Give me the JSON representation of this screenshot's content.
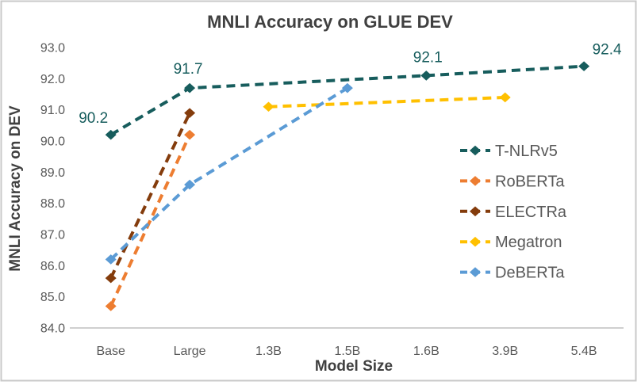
{
  "colors": {
    "title_text": "#404040",
    "axis_title_text": "#404040",
    "tick_text": "#595959",
    "legend_text": "#595959",
    "axis_line": "#BFBFBF",
    "frame_border": "#C9C9C9",
    "background": "#FFFFFF",
    "data_label_text": "#175D5D"
  },
  "chart_data": {
    "type": "line",
    "title": "MNLI Accuracy on GLUE DEV",
    "xlabel": "Model Size",
    "ylabel": "MNLI Accuracy on DEV",
    "categories": [
      "Base",
      "Large",
      "1.3B",
      "1.5B",
      "1.6B",
      "3.9B",
      "5.4B"
    ],
    "ylim": [
      84.0,
      93.0
    ],
    "ytick_step": 1.0,
    "ytick_labels": [
      "84.0",
      "85.0",
      "86.0",
      "87.0",
      "88.0",
      "89.0",
      "90.0",
      "91.0",
      "92.0",
      "93.0"
    ],
    "grid": false,
    "line_style": "dashed",
    "marker": "diamond",
    "legend_position": "right-middle",
    "series": [
      {
        "name": "T-NLRv5",
        "color": "#175D5D",
        "points": [
          {
            "x": "Base",
            "y": 90.2
          },
          {
            "x": "Large",
            "y": 91.7
          },
          {
            "x": "1.6B",
            "y": 92.1
          },
          {
            "x": "5.4B",
            "y": 92.4
          }
        ],
        "data_labels": [
          "90.2",
          "91.7",
          "92.1",
          "92.4"
        ]
      },
      {
        "name": "RoBERTa",
        "color": "#ED7D31",
        "points": [
          {
            "x": "Base",
            "y": 84.7
          },
          {
            "x": "Large",
            "y": 90.2
          }
        ]
      },
      {
        "name": "ELECTRa",
        "color": "#843C0C",
        "points": [
          {
            "x": "Base",
            "y": 85.6
          },
          {
            "x": "Large",
            "y": 90.9
          }
        ]
      },
      {
        "name": "Megatron",
        "color": "#FFC000",
        "points": [
          {
            "x": "1.3B",
            "y": 91.1
          },
          {
            "x": "3.9B",
            "y": 91.4
          }
        ]
      },
      {
        "name": "DeBERTa",
        "color": "#5B9BD5",
        "points": [
          {
            "x": "Base",
            "y": 86.2
          },
          {
            "x": "Large",
            "y": 88.6
          },
          {
            "x": "1.5B",
            "y": 91.7
          }
        ]
      }
    ]
  }
}
